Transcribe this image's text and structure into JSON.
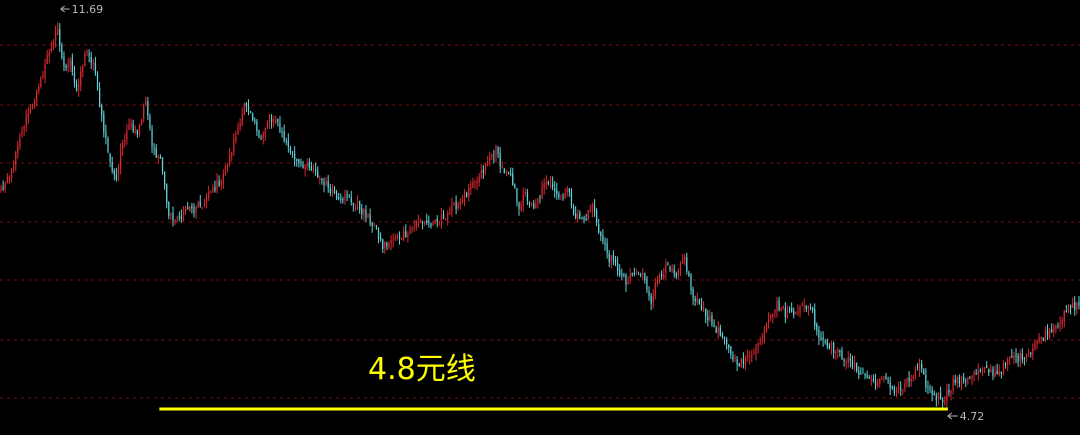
{
  "chart_data": {
    "type": "candlestick",
    "ylim": [
      4.4,
      12.2
    ],
    "grid": true,
    "high_label": "11.69",
    "low_label": "4.72",
    "annotation": {
      "text": "4.8元线",
      "line_value": 4.8,
      "color": "#ffff00"
    },
    "colors": {
      "up": "#d8282f",
      "down": "#5fd3d9",
      "grid": "#7a0e0e",
      "background": "#000000"
    },
    "close_path": [
      [
        0,
        8.7
      ],
      [
        4,
        8.9
      ],
      [
        8,
        9.5
      ],
      [
        13,
        10.2
      ],
      [
        18,
        10.6
      ],
      [
        21,
        11.1
      ],
      [
        24,
        11.45
      ],
      [
        27,
        11.69
      ],
      [
        30,
        11.0
      ],
      [
        33,
        11.2
      ],
      [
        36,
        10.5
      ],
      [
        40,
        11.3
      ],
      [
        44,
        11.1
      ],
      [
        48,
        10.1
      ],
      [
        52,
        9.2
      ],
      [
        55,
        8.9
      ],
      [
        58,
        9.6
      ],
      [
        61,
        10.0
      ],
      [
        65,
        9.8
      ],
      [
        69,
        10.4
      ],
      [
        72,
        9.5
      ],
      [
        76,
        9.3
      ],
      [
        80,
        8.2
      ],
      [
        84,
        8.1
      ],
      [
        88,
        8.35
      ],
      [
        92,
        8.3
      ],
      [
        97,
        8.45
      ],
      [
        101,
        8.7
      ],
      [
        105,
        8.9
      ],
      [
        109,
        9.3
      ],
      [
        113,
        9.9
      ],
      [
        116,
        10.3
      ],
      [
        120,
        10.0
      ],
      [
        124,
        9.7
      ],
      [
        128,
        10.0
      ],
      [
        132,
        9.95
      ],
      [
        136,
        9.6
      ],
      [
        140,
        9.3
      ],
      [
        145,
        9.15
      ],
      [
        150,
        9.0
      ],
      [
        155,
        8.8
      ],
      [
        160,
        8.6
      ],
      [
        165,
        8.55
      ],
      [
        170,
        8.4
      ],
      [
        174,
        8.2
      ],
      [
        178,
        8.0
      ],
      [
        182,
        7.6
      ],
      [
        186,
        7.7
      ],
      [
        190,
        7.8
      ],
      [
        194,
        7.9
      ],
      [
        198,
        8.05
      ],
      [
        202,
        8.1
      ],
      [
        206,
        8.0
      ],
      [
        210,
        8.15
      ],
      [
        214,
        8.3
      ],
      [
        218,
        8.45
      ],
      [
        222,
        8.6
      ],
      [
        226,
        8.8
      ],
      [
        230,
        9.05
      ],
      [
        233,
        9.3
      ],
      [
        236,
        9.45
      ],
      [
        239,
        9.1
      ],
      [
        243,
        8.9
      ],
      [
        247,
        8.4
      ],
      [
        250,
        8.6
      ],
      [
        254,
        8.3
      ],
      [
        258,
        8.7
      ],
      [
        262,
        8.9
      ],
      [
        266,
        8.55
      ],
      [
        270,
        8.7
      ],
      [
        274,
        8.2
      ],
      [
        278,
        8.1
      ],
      [
        282,
        8.4
      ],
      [
        286,
        7.8
      ],
      [
        290,
        7.4
      ],
      [
        294,
        7.2
      ],
      [
        298,
        6.9
      ],
      [
        302,
        7.1
      ],
      [
        306,
        7.05
      ],
      [
        310,
        6.6
      ],
      [
        314,
        7.1
      ],
      [
        318,
        7.2
      ],
      [
        322,
        7.0
      ],
      [
        326,
        7.4
      ],
      [
        330,
        6.6
      ],
      [
        334,
        6.5
      ],
      [
        338,
        6.2
      ],
      [
        342,
        6.0
      ],
      [
        346,
        5.7
      ],
      [
        350,
        5.45
      ],
      [
        354,
        5.4
      ],
      [
        358,
        5.6
      ],
      [
        362,
        5.8
      ],
      [
        366,
        6.3
      ],
      [
        370,
        6.5
      ],
      [
        374,
        6.35
      ],
      [
        378,
        6.4
      ],
      [
        382,
        6.45
      ],
      [
        386,
        6.5
      ],
      [
        390,
        5.9
      ],
      [
        394,
        5.8
      ],
      [
        398,
        5.6
      ],
      [
        402,
        5.5
      ],
      [
        406,
        5.35
      ],
      [
        410,
        5.2
      ],
      [
        414,
        5.1
      ],
      [
        418,
        5.0
      ],
      [
        422,
        5.1
      ],
      [
        426,
        4.85
      ],
      [
        430,
        4.9
      ],
      [
        434,
        5.1
      ],
      [
        438,
        5.3
      ],
      [
        442,
        4.9
      ],
      [
        446,
        4.75
      ],
      [
        450,
        4.72
      ],
      [
        454,
        5.05
      ],
      [
        458,
        5.05
      ],
      [
        462,
        5.15
      ],
      [
        466,
        5.2
      ],
      [
        470,
        5.25
      ],
      [
        474,
        5.2
      ],
      [
        478,
        5.3
      ],
      [
        482,
        5.5
      ],
      [
        486,
        5.5
      ],
      [
        490,
        5.6
      ],
      [
        494,
        5.8
      ],
      [
        498,
        5.95
      ],
      [
        502,
        6.1
      ],
      [
        506,
        6.25
      ],
      [
        510,
        6.45
      ],
      [
        514,
        6.5
      ]
    ],
    "annotation_line_range": [
      76,
      452
    ]
  }
}
